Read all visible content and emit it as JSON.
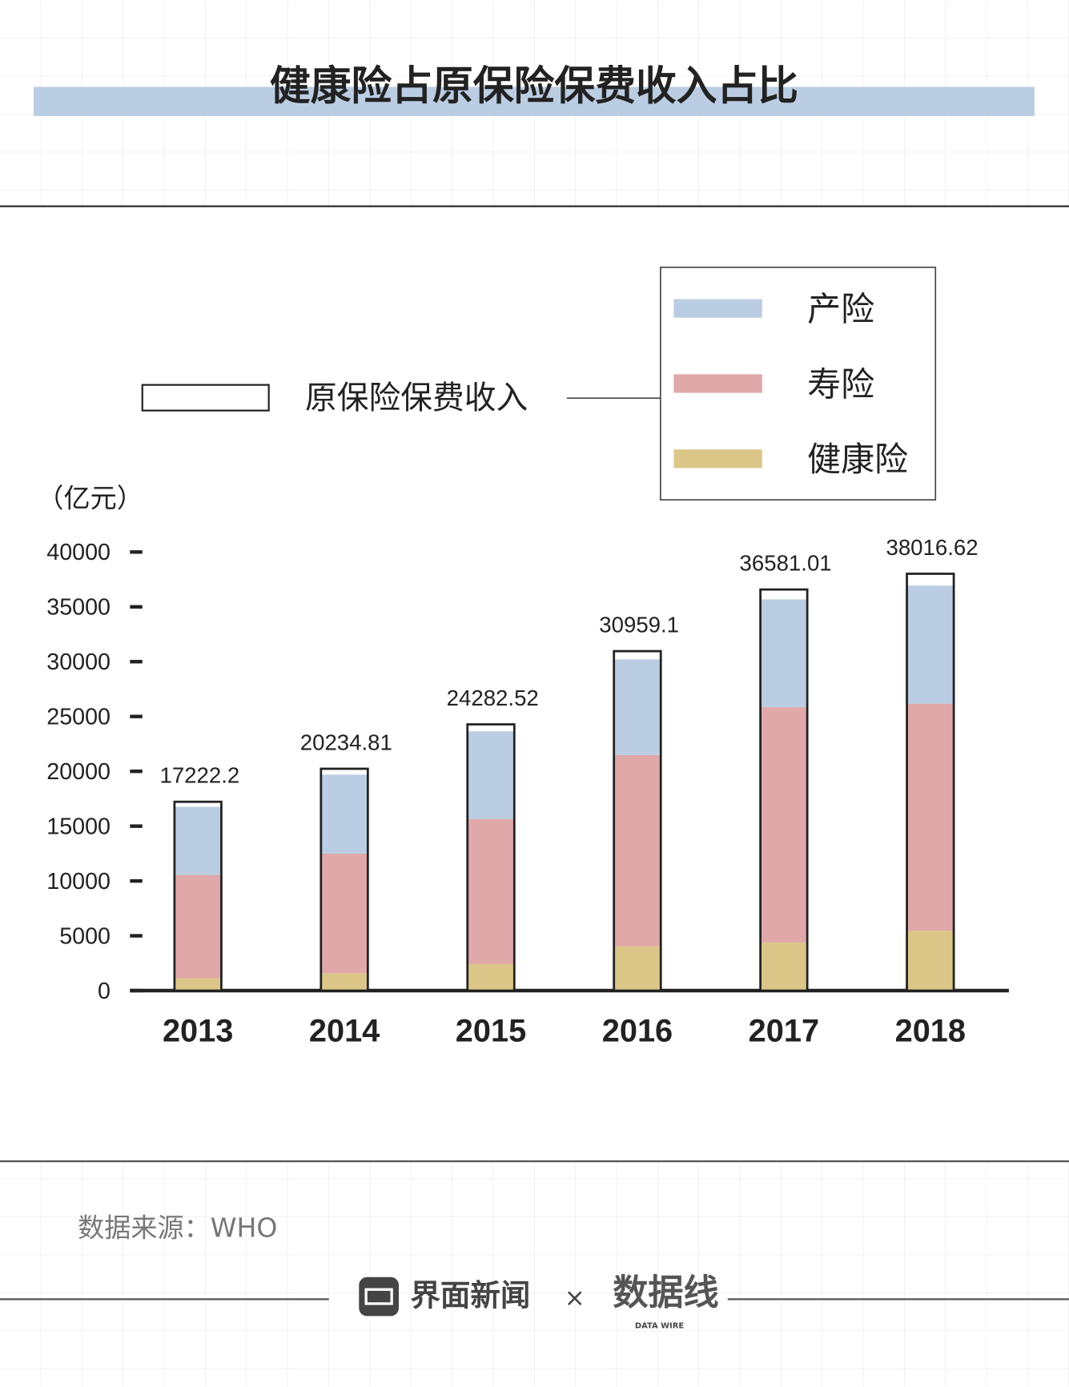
{
  "chart_data": {
    "type": "bar",
    "stacked": true,
    "title": "健康险占原保险保费收入占比",
    "y_label": "（亿元）",
    "categories": [
      "2013",
      "2014",
      "2015",
      "2016",
      "2017",
      "2018"
    ],
    "series": [
      {
        "name": "产险",
        "color": "#bbcde2",
        "values": [
          6212.26,
          7203.38,
          7994.97,
          8724.5,
          9834.66,
          10770.08
        ]
      },
      {
        "name": "寿险",
        "color": "#e0a8a8",
        "values": [
          9425.14,
          10901.69,
          13241.52,
          17442.22,
          21455.57,
          20722.86
        ]
      },
      {
        "name": "健康险",
        "color": "#dcc687",
        "values": [
          1123.5,
          1587.18,
          2410.47,
          4042.5,
          4389.46,
          5448.13
        ]
      }
    ],
    "total": {
      "name": "原保险保费收入",
      "values": [
        17222.2,
        20234.81,
        24282.52,
        30959.1,
        36581.01,
        38016.62
      ]
    },
    "ylim": [
      0,
      40000
    ],
    "yticks": [
      0,
      5000,
      10000,
      15000,
      20000,
      25000,
      30000,
      35000,
      40000
    ],
    "source": "数据来源：WHO"
  },
  "footer": {
    "brand": "界面新闻",
    "separator": "×",
    "partner": "数据线",
    "partner_sub": "DATA WIRE"
  }
}
